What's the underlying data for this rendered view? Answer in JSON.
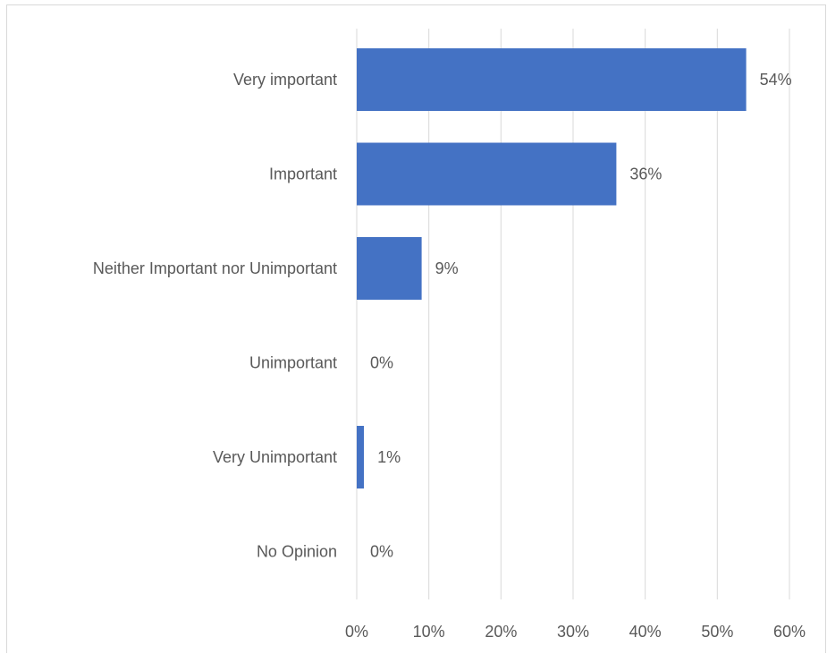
{
  "chart_data": {
    "type": "bar",
    "orientation": "horizontal",
    "categories": [
      "Very important",
      "Important",
      "Neither Important nor Unimportant",
      "Unimportant",
      "Very Unimportant",
      "No Opinion"
    ],
    "values": [
      54,
      36,
      9,
      0,
      1,
      0
    ],
    "value_labels": [
      "54%",
      "36%",
      "9%",
      "0%",
      "1%",
      "0%"
    ],
    "xlim": [
      0,
      60
    ],
    "xticks": [
      0,
      10,
      20,
      30,
      40,
      50,
      60
    ],
    "xtick_labels": [
      "0%",
      "10%",
      "20%",
      "30%",
      "40%",
      "50%",
      "60%"
    ],
    "title": "",
    "xlabel": "",
    "ylabel": "",
    "grid": "vertical",
    "legend": "none",
    "bar_color": "#4472c4",
    "grid_color": "#d9d9d9"
  }
}
